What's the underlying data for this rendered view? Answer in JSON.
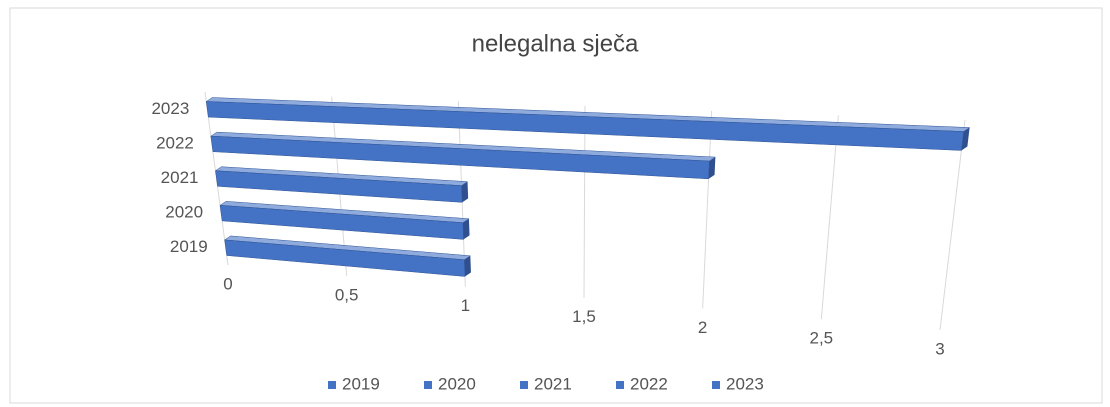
{
  "chart_data": {
    "type": "bar3d_horizontal",
    "title": "nelegalna sječa",
    "categories": [
      "2019",
      "2020",
      "2021",
      "2022",
      "2023"
    ],
    "values": [
      1,
      1,
      1,
      2,
      3
    ],
    "color": "#4472c4",
    "xlim": [
      0,
      3
    ],
    "xticks": [
      0,
      {
        "value": 0.5,
        "label": "0,5"
      },
      1,
      {
        "value": 1.5,
        "label": "1,5"
      },
      2,
      {
        "value": 2.5,
        "label": "2,5"
      },
      3
    ],
    "grid": true,
    "legend": "bottom"
  }
}
